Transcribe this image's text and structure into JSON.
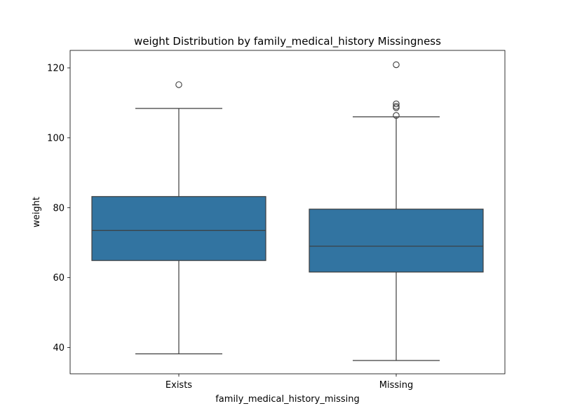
{
  "chart_data": {
    "type": "box",
    "title": "weight Distribution by family_medical_history Missingness",
    "xlabel": "family_medical_history_missing",
    "ylabel": "weight",
    "ylim": [
      32.5,
      125
    ],
    "yticks": [
      40,
      60,
      80,
      100,
      120
    ],
    "grid": false,
    "legend": "none",
    "box_color": "#3274a1",
    "line_color": "#3d3d3d",
    "categories": [
      "Exists",
      "Missing"
    ],
    "boxes": [
      {
        "category": "Exists",
        "whisker_low": 38.2,
        "q1": 64.9,
        "median": 73.5,
        "q3": 83.2,
        "whisker_high": 108.4,
        "outliers": [
          115.2
        ]
      },
      {
        "category": "Missing",
        "whisker_low": 36.3,
        "q1": 61.6,
        "median": 69.0,
        "q3": 79.6,
        "whisker_high": 106.0,
        "outliers": [
          120.9,
          109.7,
          109.0,
          108.6,
          106.4
        ]
      }
    ]
  }
}
